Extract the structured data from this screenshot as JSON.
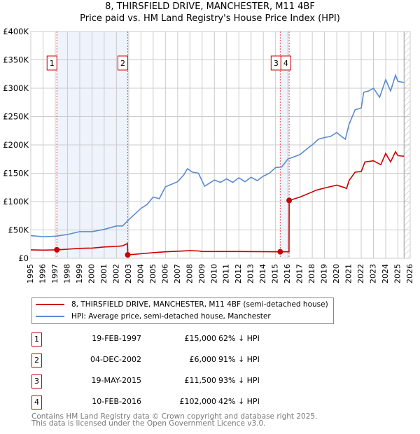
{
  "header": {
    "title": "8, THIRSFIELD DRIVE, MANCHESTER, M11 4BF",
    "subtitle": "Price paid vs. HM Land Registry's House Price Index (HPI)"
  },
  "chart_data": {
    "type": "line",
    "title": "8, THIRSFIELD DRIVE, MANCHESTER, M11 4BF",
    "subtitle": "Price paid vs. HM Land Registry's House Price Index (HPI)",
    "xlim": [
      1995,
      2026
    ],
    "ylim": [
      0,
      400000
    ],
    "y_ticks": [
      {
        "v": 0,
        "label": "£0"
      },
      {
        "v": 50000,
        "label": "£50K"
      },
      {
        "v": 100000,
        "label": "£100K"
      },
      {
        "v": 150000,
        "label": "£150K"
      },
      {
        "v": 200000,
        "label": "£200K"
      },
      {
        "v": 250000,
        "label": "£250K"
      },
      {
        "v": 300000,
        "label": "£300K"
      },
      {
        "v": 350000,
        "label": "£350K"
      },
      {
        "v": 400000,
        "label": "£400K"
      }
    ],
    "x_ticks": [
      "1995",
      "1996",
      "1997",
      "1998",
      "1999",
      "2000",
      "2001",
      "2002",
      "2003",
      "2004",
      "2005",
      "2006",
      "2007",
      "2008",
      "2009",
      "2010",
      "2011",
      "2012",
      "2013",
      "2014",
      "2015",
      "2016",
      "2017",
      "2018",
      "2019",
      "2020",
      "2021",
      "2022",
      "2023",
      "2024",
      "2025",
      "2026"
    ],
    "grid": true,
    "forecast_from": 2025.5,
    "series": [
      {
        "name": "8, THIRSFIELD DRIVE, MANCHESTER, M11 4BF (semi-detached house)",
        "color": "#cc0000",
        "x": [
          1995,
          1996,
          1997.13,
          1998,
          1999,
          2000,
          2001,
          2002,
          2002.5,
          2002.9,
          2002.93,
          2004,
          2005,
          2006,
          2007,
          2008,
          2008.7,
          2009,
          2012,
          2015.38,
          2016.1,
          2016.11,
          2017,
          2018,
          2018.3,
          2019,
          2020,
          2020.6,
          2020.8,
          2021,
          2021.5,
          2022,
          2022.3,
          2023,
          2023.6,
          2024,
          2024.4,
          2024.8,
          2025,
          2025.5
        ],
        "y": [
          15000,
          14500,
          15000,
          16000,
          17500,
          18000,
          20000,
          21000,
          22000,
          26000,
          6000,
          8000,
          10000,
          11500,
          12500,
          13500,
          13000,
          12000,
          12000,
          11500,
          11500,
          102000,
          108000,
          117000,
          120000,
          124000,
          129000,
          125000,
          123000,
          137000,
          152000,
          153000,
          170000,
          172000,
          165000,
          185000,
          170000,
          188000,
          181000,
          180000
        ]
      },
      {
        "name": "HPI: Average price, semi-detached house, Manchester",
        "color": "#5b8bd0",
        "x": [
          1995,
          1996,
          1997,
          1998,
          1999,
          2000,
          2001,
          2002,
          2002.5,
          2003,
          2004,
          2004.5,
          2005,
          2005.5,
          2006,
          2007,
          2007.5,
          2007.8,
          2008.2,
          2008.7,
          2009.2,
          2010,
          2010.5,
          2011,
          2011.5,
          2012,
          2012.5,
          2013,
          2013.5,
          2014,
          2014.5,
          2015,
          2015.5,
          2016,
          2017,
          2017.8,
          2018,
          2018.5,
          2019,
          2019.5,
          2020,
          2020.2,
          2020.7,
          2021,
          2021.5,
          2022,
          2022.2,
          2022.6,
          2023,
          2023.5,
          2024,
          2024.4,
          2024.8,
          2025,
          2025.5
        ],
        "y": [
          40000,
          38000,
          39000,
          42000,
          47000,
          47000,
          51000,
          57000,
          57000,
          68000,
          88000,
          95000,
          108000,
          105000,
          126000,
          135000,
          147000,
          158000,
          152000,
          150000,
          127000,
          138000,
          134000,
          140000,
          134000,
          142000,
          135000,
          143000,
          137000,
          145000,
          150000,
          160000,
          161000,
          175000,
          183000,
          197000,
          200000,
          210000,
          213000,
          215000,
          222000,
          218000,
          210000,
          236000,
          262000,
          265000,
          293000,
          295000,
          300000,
          284000,
          315000,
          295000,
          323000,
          312000,
          310000
        ]
      }
    ],
    "sales": [
      {
        "n": "1",
        "date": "19-FEB-1997",
        "x": 1997.13,
        "price": "£15,000",
        "value": 15000,
        "hpi": "62% ↓ HPI"
      },
      {
        "n": "2",
        "date": "04-DEC-2002",
        "x": 2002.92,
        "price": "£6,000",
        "value": 6000,
        "hpi": "91% ↓ HPI"
      },
      {
        "n": "3",
        "date": "19-MAY-2015",
        "x": 2015.38,
        "price": "£11,500",
        "value": 11500,
        "hpi": "93% ↓ HPI"
      },
      {
        "n": "4",
        "date": "10-FEB-2016",
        "x": 2016.11,
        "price": "£102,000",
        "value": 102000,
        "hpi": "42% ↓ HPI"
      }
    ]
  },
  "legend": {
    "property": "8, THIRSFIELD DRIVE, MANCHESTER, M11 4BF (semi-detached house)",
    "hpi": "HPI: Average price, semi-detached house, Manchester"
  },
  "footer": {
    "line1": "Contains HM Land Registry data © Crown copyright and database right 2025.",
    "line2": "This data is licensed under the Open Government Licence v3.0."
  }
}
